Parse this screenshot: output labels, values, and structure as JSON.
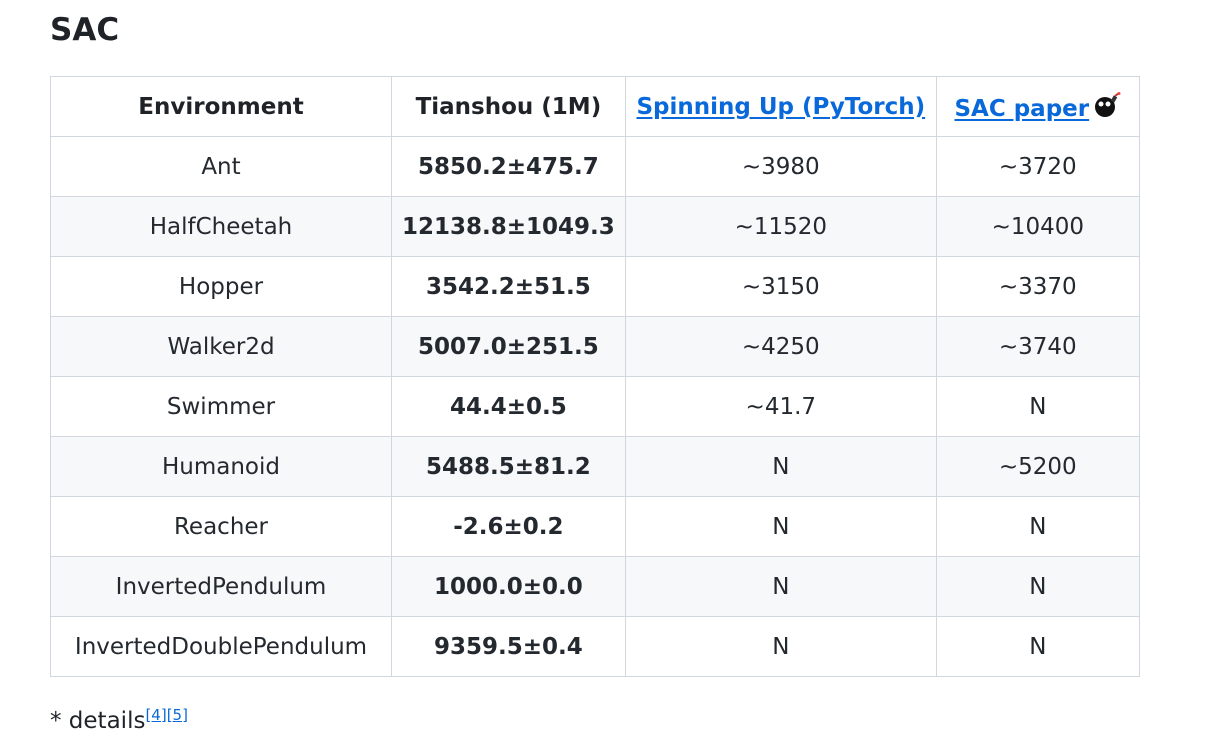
{
  "heading": "SAC",
  "table": {
    "headers": {
      "environment": "Environment",
      "tianshou": "Tianshou (1M)",
      "spinning_up": "Spinning Up (PyTorch)",
      "sac_paper": "SAC paper"
    },
    "rows": [
      {
        "env": "Ant",
        "tianshou": "5850.2±475.7",
        "spinning_up": "~3980",
        "sac_paper": "~3720"
      },
      {
        "env": "HalfCheetah",
        "tianshou": "12138.8±1049.3",
        "spinning_up": "~11520",
        "sac_paper": "~10400"
      },
      {
        "env": "Hopper",
        "tianshou": "3542.2±51.5",
        "spinning_up": "~3150",
        "sac_paper": "~3370"
      },
      {
        "env": "Walker2d",
        "tianshou": "5007.0±251.5",
        "spinning_up": "~4250",
        "sac_paper": "~3740"
      },
      {
        "env": "Swimmer",
        "tianshou": "44.4±0.5",
        "spinning_up": "~41.7",
        "sac_paper": "N"
      },
      {
        "env": "Humanoid",
        "tianshou": "5488.5±81.2",
        "spinning_up": "N",
        "sac_paper": "~5200"
      },
      {
        "env": "Reacher",
        "tianshou": "-2.6±0.2",
        "spinning_up": "N",
        "sac_paper": "N"
      },
      {
        "env": "InvertedPendulum",
        "tianshou": "1000.0±0.0",
        "spinning_up": "N",
        "sac_paper": "N"
      },
      {
        "env": "InvertedDoublePendulum",
        "tianshou": "9359.5±0.4",
        "spinning_up": "N",
        "sac_paper": "N"
      }
    ]
  },
  "footnote": {
    "prefix": "* details",
    "ref1": "[4]",
    "ref2": "[5]"
  },
  "icons": {
    "sac_paper_header": "bomb-icon"
  },
  "colors": {
    "link": "#0969da",
    "border": "#d0d7de",
    "alt_row": "#f6f8fa",
    "text": "#1f2328"
  }
}
